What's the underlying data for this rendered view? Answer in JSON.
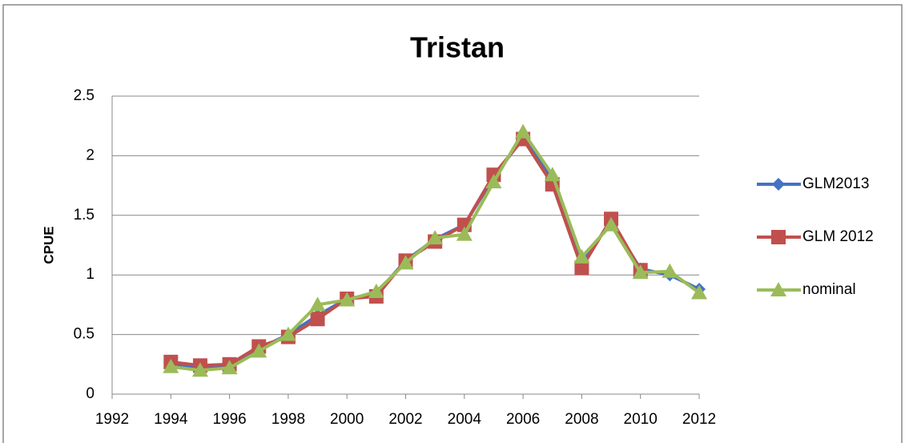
{
  "chart_data": {
    "type": "line",
    "title": "Tristan",
    "y_label": "CPUE",
    "x": [
      1994,
      1995,
      1996,
      1997,
      1998,
      1999,
      2000,
      2001,
      2002,
      2003,
      2004,
      2005,
      2006,
      2007,
      2008,
      2009,
      2010,
      2011,
      2012
    ],
    "series": [
      {
        "name": "GLM2013",
        "color": "#4472c4",
        "marker": "diamond",
        "values": [
          0.25,
          0.22,
          0.24,
          0.38,
          0.5,
          0.66,
          0.8,
          0.84,
          1.12,
          1.3,
          1.42,
          1.82,
          2.15,
          1.8,
          1.1,
          1.45,
          1.05,
          1.0,
          0.88
        ]
      },
      {
        "name": "GLM 2012",
        "color": "#c0504d",
        "marker": "square",
        "values": [
          0.27,
          0.24,
          0.25,
          0.4,
          0.48,
          0.63,
          0.8,
          0.82,
          1.12,
          1.28,
          1.42,
          1.84,
          2.14,
          1.76,
          1.06,
          1.47,
          1.04,
          null,
          null
        ]
      },
      {
        "name": "nominal",
        "color": "#9bbb59",
        "marker": "triangle",
        "values": [
          0.23,
          0.2,
          0.22,
          0.36,
          0.5,
          0.75,
          0.79,
          0.86,
          1.1,
          1.31,
          1.34,
          1.78,
          2.2,
          1.84,
          1.15,
          1.42,
          1.02,
          1.03,
          0.85
        ]
      }
    ],
    "xlim": [
      1992,
      2012
    ],
    "xticks": [
      1992,
      1994,
      1996,
      1998,
      2000,
      2002,
      2004,
      2006,
      2008,
      2010,
      2012
    ],
    "ylim": [
      0,
      2.5
    ],
    "yticks": [
      0,
      0.5,
      1,
      1.5,
      2,
      2.5
    ],
    "grid": true,
    "legend": "right"
  }
}
